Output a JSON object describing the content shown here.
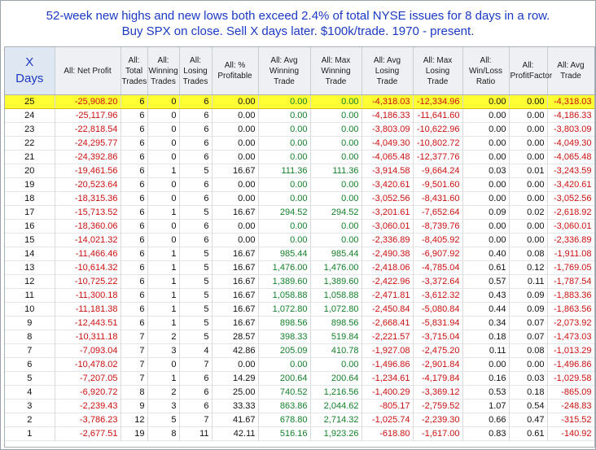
{
  "title": {
    "line1": "52-week new highs and new lows both exceed 2.4% of total NYSE issues for 8 days in a row.",
    "line2": "Buy SPX on close. Sell X days later. $100k/trade. 1970 - present."
  },
  "colors": {
    "title": "#1c39c4",
    "negative": "#cc1010",
    "positive": "#14812a",
    "highlight": "#ffff33"
  },
  "headers": [
    "X\nDays",
    "All: Net Profit",
    "All:\nTotal\nTrades",
    "All:\nWinning\nTrades",
    "All:\nLosing\nTrades",
    "All: %\nProfitable",
    "All: Avg\nWinning\nTrade",
    "All: Max\nWinning\nTrade",
    "All: Avg\nLosing\nTrade",
    "All: Max\nLosing\nTrade",
    "All:\nWin/Loss\nRatio",
    "All:\nProfitFactor",
    "All: Avg\nTrade"
  ],
  "rows": [
    [
      "25",
      "-25,908.20",
      "6",
      "0",
      "6",
      "0.00",
      "0.00",
      "0.00",
      "-4,318.03",
      "-12,334.96",
      "0.00",
      "0.00",
      "-4,318.03"
    ],
    [
      "24",
      "-25,117.96",
      "6",
      "0",
      "6",
      "0.00",
      "0.00",
      "0.00",
      "-4,186.33",
      "-11,641.60",
      "0.00",
      "0.00",
      "-4,186.33"
    ],
    [
      "23",
      "-22,818.54",
      "6",
      "0",
      "6",
      "0.00",
      "0.00",
      "0.00",
      "-3,803.09",
      "-10,622.96",
      "0.00",
      "0.00",
      "-3,803.09"
    ],
    [
      "22",
      "-24,295.77",
      "6",
      "0",
      "6",
      "0.00",
      "0.00",
      "0.00",
      "-4,049.30",
      "-10,802.72",
      "0.00",
      "0.00",
      "-4,049.30"
    ],
    [
      "21",
      "-24,392.86",
      "6",
      "0",
      "6",
      "0.00",
      "0.00",
      "0.00",
      "-4,065.48",
      "-12,377.76",
      "0.00",
      "0.00",
      "-4,065.48"
    ],
    [
      "20",
      "-19,461.56",
      "6",
      "1",
      "5",
      "16.67",
      "111.36",
      "111.36",
      "-3,914.58",
      "-9,664.24",
      "0.03",
      "0.01",
      "-3,243.59"
    ],
    [
      "19",
      "-20,523.64",
      "6",
      "0",
      "6",
      "0.00",
      "0.00",
      "0.00",
      "-3,420.61",
      "-9,501.60",
      "0.00",
      "0.00",
      "-3,420.61"
    ],
    [
      "18",
      "-18,315.36",
      "6",
      "0",
      "6",
      "0.00",
      "0.00",
      "0.00",
      "-3,052.56",
      "-8,431.60",
      "0.00",
      "0.00",
      "-3,052.56"
    ],
    [
      "17",
      "-15,713.52",
      "6",
      "1",
      "5",
      "16.67",
      "294.52",
      "294.52",
      "-3,201.61",
      "-7,652.64",
      "0.09",
      "0.02",
      "-2,618.92"
    ],
    [
      "16",
      "-18,360.06",
      "6",
      "0",
      "6",
      "0.00",
      "0.00",
      "0.00",
      "-3,060.01",
      "-8,739.76",
      "0.00",
      "0.00",
      "-3,060.01"
    ],
    [
      "15",
      "-14,021.32",
      "6",
      "0",
      "6",
      "0.00",
      "0.00",
      "0.00",
      "-2,336.89",
      "-8,405.92",
      "0.00",
      "0.00",
      "-2,336.89"
    ],
    [
      "14",
      "-11,466.46",
      "6",
      "1",
      "5",
      "16.67",
      "985.44",
      "985.44",
      "-2,490.38",
      "-6,907.92",
      "0.40",
      "0.08",
      "-1,911.08"
    ],
    [
      "13",
      "-10,614.32",
      "6",
      "1",
      "5",
      "16.67",
      "1,476.00",
      "1,476.00",
      "-2,418.06",
      "-4,785.04",
      "0.61",
      "0.12",
      "-1,769.05"
    ],
    [
      "12",
      "-10,725.22",
      "6",
      "1",
      "5",
      "16.67",
      "1,389.60",
      "1,389.60",
      "-2,422.96",
      "-3,372.64",
      "0.57",
      "0.11",
      "-1,787.54"
    ],
    [
      "11",
      "-11,300.18",
      "6",
      "1",
      "5",
      "16.67",
      "1,058.88",
      "1,058.88",
      "-2,471.81",
      "-3,612.32",
      "0.43",
      "0.09",
      "-1,883.36"
    ],
    [
      "10",
      "-11,181.38",
      "6",
      "1",
      "5",
      "16.67",
      "1,072.80",
      "1,072.80",
      "-2,450.84",
      "-5,080.84",
      "0.44",
      "0.09",
      "-1,863.56"
    ],
    [
      "9",
      "-12,443.51",
      "6",
      "1",
      "5",
      "16.67",
      "898.56",
      "898.56",
      "-2,668.41",
      "-5,831.94",
      "0.34",
      "0.07",
      "-2,073.92"
    ],
    [
      "8",
      "-10,311.18",
      "7",
      "2",
      "5",
      "28.57",
      "398.33",
      "519.84",
      "-2,221.57",
      "-3,715.04",
      "0.18",
      "0.07",
      "-1,473.03"
    ],
    [
      "7",
      "-7,093.04",
      "7",
      "3",
      "4",
      "42.86",
      "205.09",
      "410.78",
      "-1,927.08",
      "-2,475.20",
      "0.11",
      "0.08",
      "-1,013.29"
    ],
    [
      "6",
      "-10,478.02",
      "7",
      "0",
      "7",
      "0.00",
      "0.00",
      "0.00",
      "-1,496.86",
      "-2,901.84",
      "0.00",
      "0.00",
      "-1,496.86"
    ],
    [
      "5",
      "-7,207.05",
      "7",
      "1",
      "6",
      "14.29",
      "200.64",
      "200.64",
      "-1,234.61",
      "-4,179.84",
      "0.16",
      "0.03",
      "-1,029.58"
    ],
    [
      "4",
      "-6,920.72",
      "8",
      "2",
      "6",
      "25.00",
      "740.52",
      "1,216.56",
      "-1,400.29",
      "-3,369.12",
      "0.53",
      "0.18",
      "-865.09"
    ],
    [
      "3",
      "-2,239.43",
      "9",
      "3",
      "6",
      "33.33",
      "863.86",
      "2,044.62",
      "-805.17",
      "-2,759.52",
      "1.07",
      "0.54",
      "-248.83"
    ],
    [
      "2",
      "-3,786.23",
      "12",
      "5",
      "7",
      "41.67",
      "678.80",
      "2,714.32",
      "-1,025.74",
      "-2,239.30",
      "0.66",
      "0.47",
      "-315.52"
    ],
    [
      "1",
      "-2,677.51",
      "19",
      "8",
      "11",
      "42.11",
      "516.16",
      "1,923.26",
      "-618.80",
      "-1,617.00",
      "0.83",
      "0.61",
      "-140.92"
    ]
  ]
}
